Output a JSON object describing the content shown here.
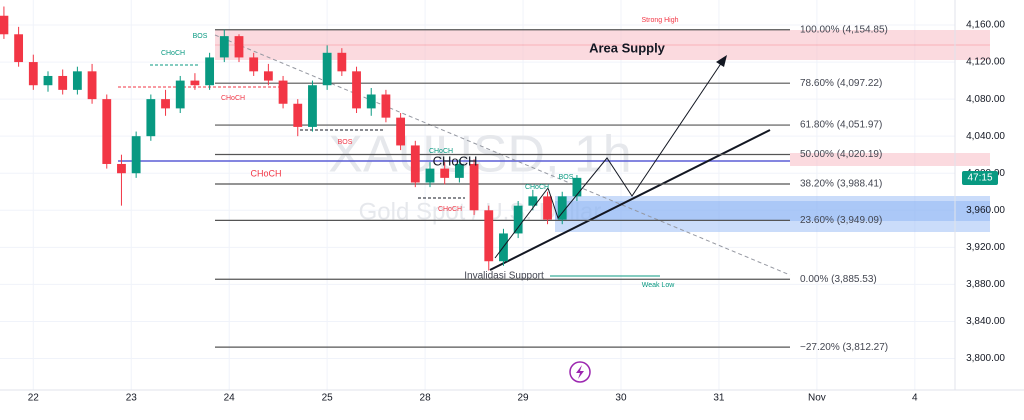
{
  "chart_data": {
    "type": "candlestick",
    "symbol": "XAUUSD, 1h",
    "description": "Gold Spot / U.S. Dollar",
    "up_color": "#089981",
    "down_color": "#f23645",
    "x": [
      -0.3,
      -0.15,
      0,
      0.15,
      0.3,
      0.45,
      0.6,
      0.75,
      0.9,
      1.05,
      1.2,
      1.35,
      1.5,
      1.65,
      1.8,
      1.95,
      2.1,
      2.25,
      2.4,
      2.55,
      2.7,
      2.85,
      3,
      3.15,
      3.3,
      3.45,
      3.6,
      3.75,
      3.9,
      4.05,
      4.2,
      4.35,
      4.5,
      4.65,
      4.8,
      4.95,
      5.1,
      5.25,
      5.4,
      5.55
    ],
    "open": [
      4170,
      4150,
      4120,
      4095,
      4105,
      4090,
      4110,
      4080,
      4010,
      4000,
      4040,
      4080,
      4070,
      4100,
      4095,
      4125,
      4148,
      4125,
      4110,
      4100,
      4075,
      4050,
      4095,
      4130,
      4110,
      4070,
      4085,
      4060,
      4030,
      3990,
      4005,
      3995,
      4010,
      3960,
      3905,
      3935,
      3965,
      3975,
      3950,
      3975
    ],
    "high": [
      4180,
      4158,
      4128,
      4110,
      4112,
      4115,
      4118,
      4085,
      4020,
      4045,
      4085,
      4090,
      4105,
      4108,
      4130,
      4155,
      4150,
      4130,
      4118,
      4105,
      4080,
      4100,
      4138,
      4135,
      4115,
      4092,
      4090,
      4065,
      4035,
      4012,
      4012,
      4015,
      4015,
      3965,
      3940,
      3970,
      3982,
      3980,
      3980,
      3998
    ],
    "low": [
      4145,
      4115,
      4090,
      4088,
      4085,
      4085,
      4075,
      4005,
      3965,
      3995,
      4035,
      4062,
      4065,
      4090,
      4090,
      4120,
      4120,
      4105,
      4095,
      4070,
      4040,
      4045,
      4090,
      4105,
      4065,
      4062,
      4055,
      4025,
      3985,
      3985,
      3988,
      3990,
      3955,
      3895,
      3900,
      3930,
      3960,
      3945,
      3945,
      3970
    ],
    "close": [
      4150,
      4120,
      4095,
      4105,
      4090,
      4110,
      4080,
      4010,
      4000,
      4040,
      4080,
      4070,
      4100,
      4095,
      4125,
      4148,
      4125,
      4110,
      4100,
      4075,
      4050,
      4095,
      4130,
      4110,
      4070,
      4085,
      4060,
      4030,
      3990,
      4005,
      3995,
      4010,
      3960,
      3905,
      3935,
      3965,
      3975,
      3950,
      3975,
      3995
    ],
    "xlim": [
      -0.34,
      9.41
    ],
    "ylim": [
      3766,
      4187
    ],
    "xticks": [
      {
        "value": 0,
        "label": "22"
      },
      {
        "value": 1,
        "label": "23"
      },
      {
        "value": 2,
        "label": "24"
      },
      {
        "value": 3,
        "label": "25"
      },
      {
        "value": 4,
        "label": "28"
      },
      {
        "value": 5,
        "label": "29"
      },
      {
        "value": 6,
        "label": "30"
      },
      {
        "value": 7,
        "label": "31"
      },
      {
        "value": 8,
        "label": "Nov"
      },
      {
        "value": 9,
        "label": "4"
      }
    ],
    "yticks": [
      {
        "value": 4160,
        "label": "4,160.00"
      },
      {
        "value": 4120,
        "label": "4,120.00"
      },
      {
        "value": 4080,
        "label": "4,080.00"
      },
      {
        "value": 4040,
        "label": "4,040.00"
      },
      {
        "value": 4000,
        "label": "4,000.00"
      },
      {
        "value": 3960,
        "label": "3,960.00"
      },
      {
        "value": 3920,
        "label": "3,920.00"
      },
      {
        "value": 3880,
        "label": "3,880.00"
      },
      {
        "value": 3840,
        "label": "3,840.00"
      },
      {
        "value": 3800,
        "label": "3,800.00"
      }
    ],
    "fib_levels": [
      {
        "value": 4154.85,
        "label": "100.00% (4,154.85)"
      },
      {
        "value": 4097.22,
        "label": "78.60% (4,097.22)"
      },
      {
        "value": 4051.97,
        "label": "61.80% (4,051.97)"
      },
      {
        "value": 4020.19,
        "label": "50.00% (4,020.19)"
      },
      {
        "value": 3988.41,
        "label": "38.20% (3,988.41)"
      },
      {
        "value": 3949.09,
        "label": "23.60% (3,949.09)"
      },
      {
        "value": 3885.53,
        "label": "0.00% (3,885.53)"
      },
      {
        "value": 3812.27,
        "label": "−27.20% (3,812.27)"
      }
    ],
    "price_countdown": "47:15",
    "annotations": [
      "Strong High",
      "Area Supply",
      "BOS",
      "CHoCH",
      "CHoCH",
      "BOS",
      "CHoCH",
      "CHoCH",
      "CHoCH",
      "BOS",
      "CHoCH",
      "CHoCH",
      "Invalidasi Support",
      "Weak Low"
    ]
  }
}
